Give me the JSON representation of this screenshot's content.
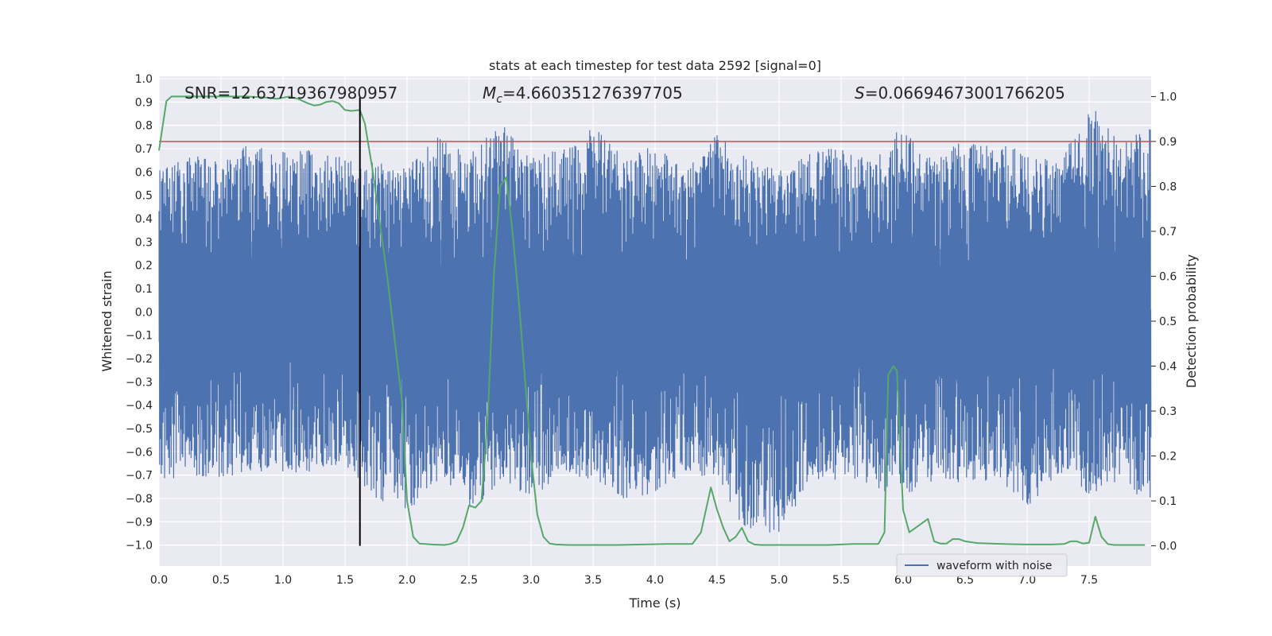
{
  "chart_data": {
    "type": "line",
    "title": "stats at each timestep for test data 2592 [signal=0]",
    "xlabel": "Time (s)",
    "ylabel_left": "Whitened strain",
    "ylabel_right": "Detection probability",
    "xlim": [
      0.0,
      8.0
    ],
    "ylim_left": [
      -1.09,
      1.01
    ],
    "ylim_right": [
      -0.045,
      1.045
    ],
    "x_ticks": [
      "0.0",
      "0.5",
      "1.0",
      "1.5",
      "2.0",
      "2.5",
      "3.0",
      "3.5",
      "4.0",
      "4.5",
      "5.0",
      "5.5",
      "6.0",
      "6.5",
      "7.0",
      "7.5"
    ],
    "y_left_ticks": [
      "1.0",
      "0.9",
      "0.8",
      "0.7",
      "0.6",
      "0.5",
      "0.4",
      "0.3",
      "0.2",
      "0.1",
      "0.0",
      "-0.1",
      "-0.2",
      "-0.3",
      "-0.4",
      "-0.5",
      "-0.6",
      "-0.7",
      "-0.8",
      "-0.9",
      "-1.0"
    ],
    "y_right_ticks": [
      "1.0",
      "0.9",
      "0.8",
      "0.7",
      "0.6",
      "0.5",
      "0.4",
      "0.3",
      "0.2",
      "0.1",
      "0.0"
    ],
    "grid": true,
    "legend": {
      "placement": "lower-right",
      "entries": [
        "waveform with noise"
      ]
    },
    "annotations": {
      "snr": "SNR=12.63719367980957",
      "mc_symbol": "M",
      "mc_sub": "c",
      "mc_value": "=4.660351276397705",
      "s_symbol": "S",
      "s_value": "=0.06694673001766205"
    },
    "series": [
      {
        "name": "waveform with noise",
        "axis": "left",
        "color": "#4c72b0",
        "note_envelope": {
          "x": [
            0,
            0.25,
            0.5,
            0.75,
            1,
            1.25,
            1.5,
            1.75,
            2,
            2.25,
            2.5,
            2.75,
            3,
            3.25,
            3.5,
            3.75,
            4,
            4.25,
            4.5,
            4.75,
            5,
            5.25,
            5.5,
            5.75,
            6,
            6.25,
            6.5,
            6.75,
            7,
            7.25,
            7.5,
            7.75,
            8
          ],
          "upper": [
            0.63,
            0.68,
            0.65,
            0.74,
            0.7,
            0.7,
            0.66,
            0.64,
            0.62,
            0.76,
            0.68,
            0.82,
            0.66,
            0.7,
            0.8,
            0.66,
            0.72,
            0.62,
            0.76,
            0.66,
            0.62,
            0.68,
            0.72,
            0.66,
            0.8,
            0.66,
            0.74,
            0.72,
            0.7,
            0.64,
            0.9,
            0.72,
            0.8
          ],
          "lower": [
            -0.75,
            -0.7,
            -0.72,
            -0.68,
            -0.7,
            -0.7,
            -0.66,
            -0.8,
            -0.86,
            -0.72,
            -0.84,
            -0.76,
            -0.8,
            -0.7,
            -0.72,
            -0.82,
            -0.78,
            -0.72,
            -0.7,
            -0.98,
            -0.96,
            -0.72,
            -0.72,
            -0.74,
            -0.82,
            -0.72,
            -0.74,
            -0.72,
            -0.84,
            -0.7,
            -0.8,
            -0.72,
            -0.86
          ]
        }
      },
      {
        "name": "",
        "axis": "right",
        "color": "#55a868",
        "x": [
          0.0,
          0.06,
          0.1,
          0.2,
          0.3,
          0.5,
          0.7,
          0.85,
          0.95,
          1.05,
          1.12,
          1.2,
          1.25,
          1.3,
          1.35,
          1.4,
          1.45,
          1.5,
          1.55,
          1.62,
          1.66,
          1.72,
          1.78,
          1.84,
          1.9,
          1.96,
          2.0,
          2.05,
          2.1,
          2.2,
          2.3,
          2.35,
          2.4,
          2.45,
          2.5,
          2.55,
          2.6,
          2.65,
          2.7,
          2.75,
          2.8,
          2.85,
          2.9,
          3.0,
          3.05,
          3.1,
          3.15,
          3.2,
          3.3,
          3.5,
          3.7,
          3.9,
          4.1,
          4.3,
          4.37,
          4.45,
          4.5,
          4.55,
          4.6,
          4.65,
          4.7,
          4.75,
          4.8,
          4.85,
          4.9,
          5.0,
          5.2,
          5.4,
          5.6,
          5.8,
          5.85,
          5.88,
          5.92,
          5.95,
          6.0,
          6.05,
          6.1,
          6.15,
          6.2,
          6.25,
          6.3,
          6.35,
          6.4,
          6.45,
          6.5,
          6.6,
          6.8,
          7.0,
          7.2,
          7.3,
          7.35,
          7.4,
          7.45,
          7.5,
          7.55,
          7.6,
          7.65,
          7.7,
          7.8,
          7.95
        ],
        "values": [
          0.88,
          0.99,
          1.0,
          1.0,
          1.0,
          1.0,
          1.0,
          0.998,
          0.995,
          1.0,
          0.995,
          0.985,
          0.98,
          0.982,
          0.988,
          0.99,
          0.985,
          0.97,
          0.968,
          0.97,
          0.94,
          0.84,
          0.72,
          0.6,
          0.46,
          0.32,
          0.1,
          0.02,
          0.005,
          0.003,
          0.002,
          0.004,
          0.01,
          0.04,
          0.09,
          0.085,
          0.1,
          0.28,
          0.6,
          0.8,
          0.82,
          0.7,
          0.55,
          0.2,
          0.07,
          0.02,
          0.005,
          0.003,
          0.002,
          0.002,
          0.002,
          0.003,
          0.004,
          0.004,
          0.03,
          0.13,
          0.08,
          0.04,
          0.01,
          0.02,
          0.04,
          0.01,
          0.003,
          0.002,
          0.002,
          0.002,
          0.002,
          0.002,
          0.004,
          0.004,
          0.03,
          0.38,
          0.4,
          0.39,
          0.08,
          0.03,
          0.04,
          0.05,
          0.06,
          0.01,
          0.005,
          0.005,
          0.015,
          0.015,
          0.01,
          0.006,
          0.004,
          0.003,
          0.003,
          0.004,
          0.01,
          0.01,
          0.005,
          0.007,
          0.065,
          0.02,
          0.004,
          0.002,
          0.002,
          0.002
        ]
      },
      {
        "name": "",
        "axis": "right",
        "color": "#c44e52",
        "kind": "threshold",
        "value": 0.9
      },
      {
        "name": "",
        "axis": "right",
        "color": "#000000",
        "kind": "vertical_marker",
        "x": 1.62
      }
    ]
  }
}
